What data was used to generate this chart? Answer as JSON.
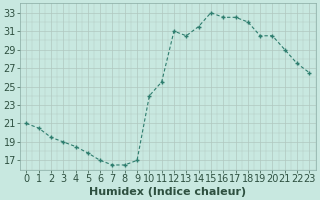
{
  "x": [
    0,
    1,
    2,
    3,
    4,
    5,
    6,
    7,
    8,
    9,
    10,
    11,
    12,
    13,
    14,
    15,
    16,
    17,
    18,
    19,
    20,
    21,
    22,
    23
  ],
  "y": [
    21.0,
    20.5,
    19.5,
    19.0,
    18.5,
    17.8,
    17.0,
    16.5,
    16.5,
    17.0,
    24.0,
    25.5,
    31.0,
    30.5,
    31.5,
    33.0,
    32.5,
    32.5,
    32.0,
    30.5,
    30.5,
    29.0,
    27.5,
    26.5
  ],
  "line_color": "#2e7d6e",
  "marker": "+",
  "bg_color": "#c8e8e0",
  "grid_color_major": "#b0c8c0",
  "grid_color_minor": "#b0c8c0",
  "xlabel": "Humidex (Indice chaleur)",
  "ylabel_ticks": [
    17,
    19,
    21,
    23,
    25,
    27,
    29,
    31,
    33
  ],
  "xlim": [
    -0.5,
    23.5
  ],
  "ylim": [
    16.0,
    34.0
  ],
  "xlabel_fontsize": 8,
  "tick_fontsize": 7,
  "axis_label_color": "#2e5040",
  "tick_color": "#2e5040",
  "spine_color": "#8aada5"
}
